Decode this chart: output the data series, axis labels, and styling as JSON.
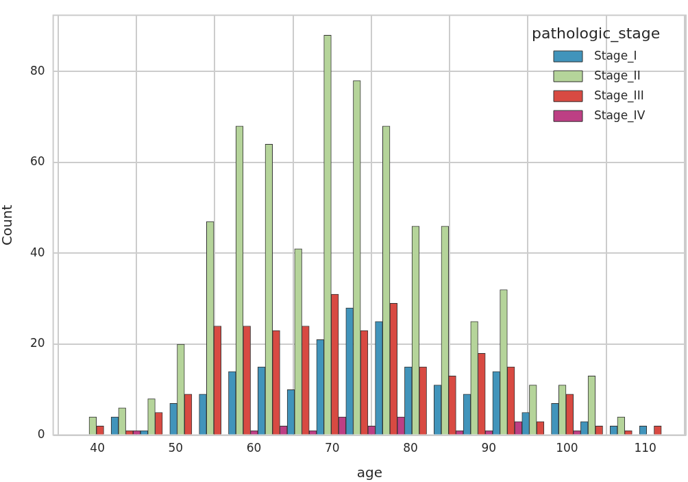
{
  "chart_data": {
    "type": "histogram",
    "xlabel": "age",
    "ylabel": "Count",
    "legend_title": "pathologic_stage",
    "bins": [
      38,
      41.75,
      45.5,
      49.25,
      53,
      56.75,
      60.5,
      64.25,
      68,
      71.75,
      75.5,
      79.25,
      83,
      86.75,
      90.5,
      94.25,
      98,
      101.75,
      105.5,
      109.25,
      113
    ],
    "series": [
      {
        "name": "Stage_I",
        "color": "#4194bb",
        "values": [
          0,
          4,
          1,
          7,
          9,
          14,
          15,
          10,
          21,
          28,
          25,
          15,
          11,
          9,
          14,
          5,
          7,
          3,
          2,
          2
        ]
      },
      {
        "name": "Stage_II",
        "color": "#b5d49a",
        "values": [
          4,
          6,
          8,
          20,
          47,
          68,
          64,
          41,
          88,
          78,
          68,
          46,
          46,
          25,
          32,
          11,
          11,
          13,
          4,
          0
        ]
      },
      {
        "name": "Stage_III",
        "color": "#d84a42",
        "values": [
          2,
          1,
          5,
          9,
          24,
          24,
          23,
          24,
          31,
          23,
          29,
          15,
          13,
          18,
          15,
          3,
          9,
          2,
          1,
          2
        ]
      },
      {
        "name": "Stage_IV",
        "color": "#bd3f84",
        "values": [
          0,
          1,
          0,
          0,
          0,
          1,
          2,
          1,
          4,
          2,
          4,
          0,
          1,
          1,
          3,
          0,
          1,
          0,
          0,
          0
        ]
      }
    ],
    "xlim": [
      34.35,
      115.2
    ],
    "ylim": [
      0,
      92.4
    ],
    "xticks": [
      40,
      50,
      60,
      70,
      80,
      90,
      100,
      110
    ],
    "yticks": [
      0,
      20,
      40,
      60,
      80
    ],
    "grid": true,
    "legend": "top right"
  }
}
